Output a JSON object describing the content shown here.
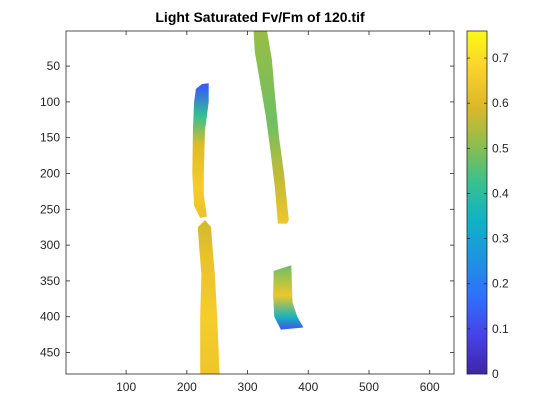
{
  "window": {
    "title": "Light Saturated Fv/Fm of 120.tif"
  },
  "chart_data": {
    "type": "heatmap",
    "title": "Light Saturated Fv/Fm of 120.tif",
    "xlabel": "",
    "ylabel": "",
    "xlim": [
      1,
      640
    ],
    "ylim": [
      1,
      480
    ],
    "y_reversed": true,
    "x_ticks": [
      100,
      200,
      300,
      400,
      500,
      600
    ],
    "y_ticks": [
      50,
      100,
      150,
      200,
      250,
      300,
      350,
      400,
      450
    ],
    "background": "#ffffff",
    "colormap": "parula",
    "colorbar": {
      "range": [
        0,
        0.76
      ],
      "ticks": [
        0,
        0.1,
        0.2,
        0.3,
        0.4,
        0.5,
        0.6,
        0.7
      ],
      "tick_labels": [
        "0",
        "0.1",
        "0.2",
        "0.3",
        "0.4",
        "0.5",
        "0.6",
        "0.7"
      ],
      "stops": [
        "#3e26a8",
        "#4742e5",
        "#2f6ffa",
        "#1f93e0",
        "#10b0c8",
        "#36c08f",
        "#8cbe4d",
        "#dbb82a",
        "#fbd02d",
        "#f9fb15"
      ]
    },
    "regions": [
      {
        "name": "left-upper-leaf",
        "outline": [
          [
            215,
            82
          ],
          [
            225,
            75
          ],
          [
            236,
            74
          ],
          [
            236,
            100
          ],
          [
            230,
            140
          ],
          [
            228,
            200
          ],
          [
            228,
            230
          ],
          [
            233,
            260
          ],
          [
            222,
            262
          ],
          [
            212,
            245
          ],
          [
            209,
            200
          ],
          [
            210,
            140
          ],
          [
            212,
            100
          ]
        ],
        "values": [
          [
            80,
            0.14
          ],
          [
            120,
            0.42
          ],
          [
            160,
            0.6
          ],
          [
            220,
            0.66
          ],
          [
            262,
            0.63
          ]
        ]
      },
      {
        "name": "left-lower-leaf",
        "outline": [
          [
            230,
            265
          ],
          [
            240,
            275
          ],
          [
            242,
            300
          ],
          [
            246,
            340
          ],
          [
            250,
            400
          ],
          [
            254,
            480
          ],
          [
            222,
            480
          ],
          [
            222,
            400
          ],
          [
            224,
            340
          ],
          [
            220,
            300
          ],
          [
            218,
            275
          ]
        ],
        "values": [
          [
            265,
            0.58
          ],
          [
            320,
            0.63
          ],
          [
            400,
            0.66
          ],
          [
            480,
            0.64
          ]
        ]
      },
      {
        "name": "right-upper-leaf",
        "outline": [
          [
            310,
            1
          ],
          [
            332,
            1
          ],
          [
            340,
            40
          ],
          [
            345,
            90
          ],
          [
            352,
            150
          ],
          [
            360,
            200
          ],
          [
            368,
            265
          ],
          [
            365,
            270
          ],
          [
            350,
            270
          ],
          [
            345,
            220
          ],
          [
            338,
            170
          ],
          [
            330,
            120
          ],
          [
            320,
            70
          ],
          [
            312,
            30
          ]
        ],
        "values": [
          [
            1,
            0.52
          ],
          [
            60,
            0.5
          ],
          [
            130,
            0.48
          ],
          [
            200,
            0.56
          ],
          [
            270,
            0.64
          ]
        ]
      },
      {
        "name": "right-lower-leaf",
        "outline": [
          [
            343,
            336
          ],
          [
            372,
            328
          ],
          [
            374,
            380
          ],
          [
            382,
            400
          ],
          [
            392,
            415
          ],
          [
            355,
            418
          ],
          [
            344,
            400
          ],
          [
            342,
            370
          ]
        ],
        "values": [
          [
            330,
            0.48
          ],
          [
            370,
            0.64
          ],
          [
            400,
            0.36
          ],
          [
            418,
            0.12
          ]
        ]
      }
    ]
  }
}
